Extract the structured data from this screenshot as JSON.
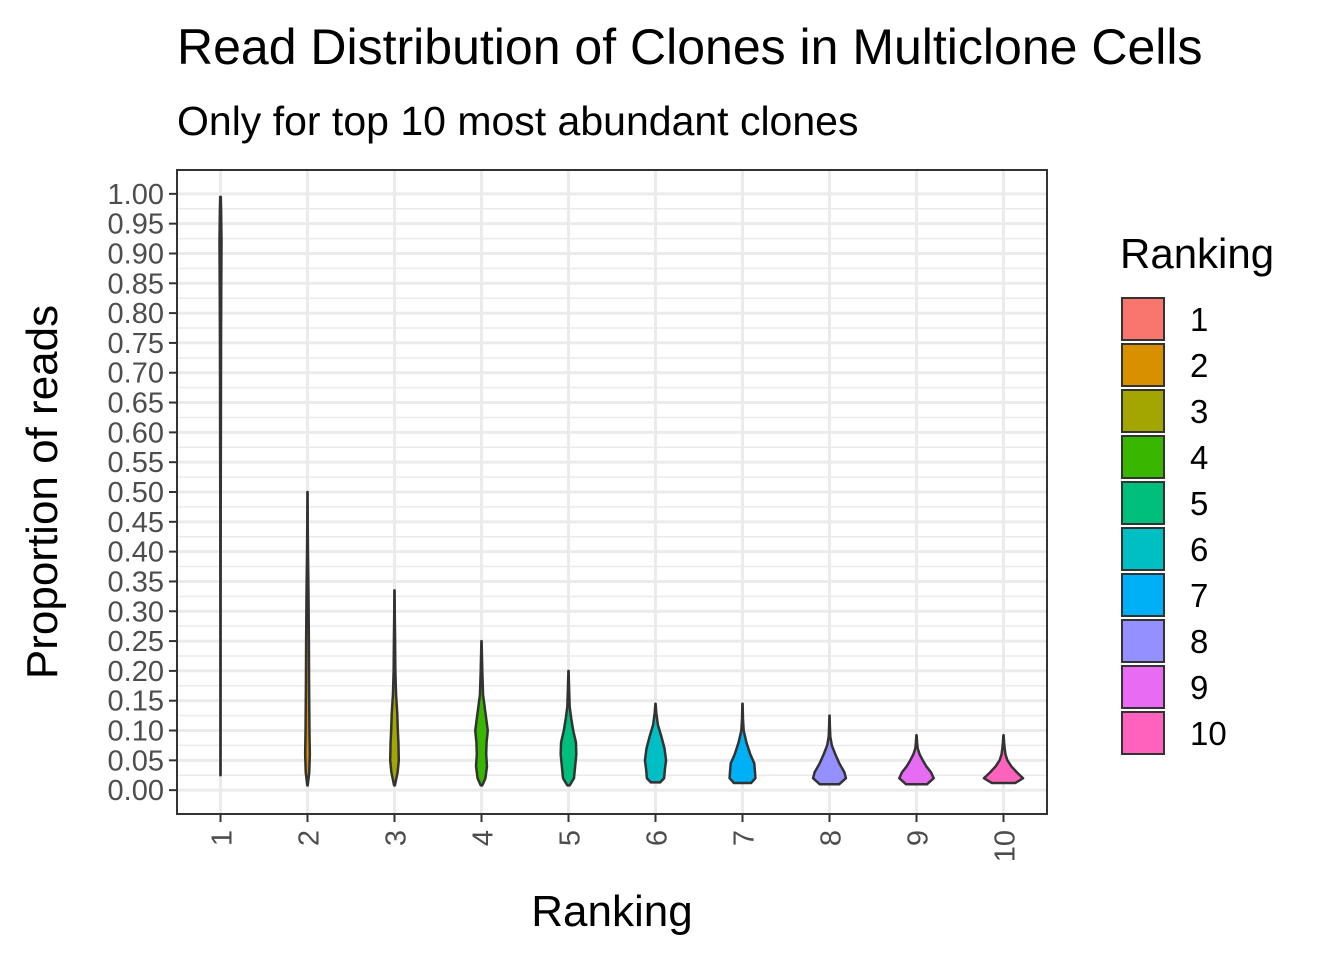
{
  "chart_data": {
    "type": "violin",
    "title": "Read Distribution of Clones in Multiclone Cells",
    "subtitle": "Only for top 10 most abundant clones",
    "xlabel": "Ranking",
    "ylabel": "Proportion of reads",
    "ylim": [
      -0.04,
      1.04
    ],
    "y_ticks": [
      "0.00",
      "0.05",
      "0.10",
      "0.15",
      "0.20",
      "0.25",
      "0.30",
      "0.35",
      "0.40",
      "0.45",
      "0.50",
      "0.55",
      "0.60",
      "0.65",
      "0.70",
      "0.75",
      "0.80",
      "0.85",
      "0.90",
      "0.95",
      "1.00"
    ],
    "categories": [
      "1",
      "2",
      "3",
      "4",
      "5",
      "6",
      "7",
      "8",
      "9",
      "10"
    ],
    "grid": true,
    "legend": {
      "title": "Ranking",
      "position": "right",
      "labels": [
        "1",
        "2",
        "3",
        "4",
        "5",
        "6",
        "7",
        "8",
        "9",
        "10"
      ]
    },
    "colors": [
      "#F8766D",
      "#D89000",
      "#A3A500",
      "#39B600",
      "#00BF7D",
      "#00BFC4",
      "#00B0F6",
      "#9590FF",
      "#E76BF3",
      "#FF62BC"
    ],
    "series": [
      {
        "min": 0.025,
        "max": 0.995,
        "profile": [
          [
            0.025,
            0.002
          ],
          [
            0.3,
            0.004
          ],
          [
            0.48,
            0.006
          ],
          [
            0.6,
            0.01
          ],
          [
            0.75,
            0.014
          ],
          [
            0.85,
            0.02
          ],
          [
            0.92,
            0.026
          ],
          [
            0.97,
            0.016
          ],
          [
            0.995,
            0.008
          ]
        ]
      },
      {
        "min": 0.008,
        "max": 0.5,
        "profile": [
          [
            0.008,
            0.006
          ],
          [
            0.03,
            0.045
          ],
          [
            0.06,
            0.06
          ],
          [
            0.1,
            0.05
          ],
          [
            0.18,
            0.04
          ],
          [
            0.25,
            0.035
          ],
          [
            0.33,
            0.025
          ],
          [
            0.4,
            0.012
          ],
          [
            0.45,
            0.006
          ],
          [
            0.5,
            0.002
          ]
        ]
      },
      {
        "min": 0.008,
        "max": 0.335,
        "profile": [
          [
            0.008,
            0.01
          ],
          [
            0.03,
            0.08
          ],
          [
            0.05,
            0.11
          ],
          [
            0.08,
            0.1
          ],
          [
            0.1,
            0.085
          ],
          [
            0.13,
            0.07
          ],
          [
            0.16,
            0.04
          ],
          [
            0.2,
            0.022
          ],
          [
            0.25,
            0.015
          ],
          [
            0.29,
            0.008
          ],
          [
            0.335,
            0.003
          ]
        ]
      },
      {
        "min": 0.008,
        "max": 0.25,
        "profile": [
          [
            0.008,
            0.02
          ],
          [
            0.02,
            0.1
          ],
          [
            0.04,
            0.14
          ],
          [
            0.06,
            0.12
          ],
          [
            0.08,
            0.13
          ],
          [
            0.1,
            0.16
          ],
          [
            0.13,
            0.1
          ],
          [
            0.16,
            0.04
          ],
          [
            0.2,
            0.02
          ],
          [
            0.25,
            0.003
          ]
        ]
      },
      {
        "min": 0.008,
        "max": 0.2,
        "profile": [
          [
            0.008,
            0.03
          ],
          [
            0.02,
            0.14
          ],
          [
            0.04,
            0.17
          ],
          [
            0.06,
            0.2
          ],
          [
            0.08,
            0.19
          ],
          [
            0.1,
            0.12
          ],
          [
            0.12,
            0.07
          ],
          [
            0.14,
            0.03
          ],
          [
            0.17,
            0.015
          ],
          [
            0.2,
            0.003
          ]
        ]
      },
      {
        "min": 0.013,
        "max": 0.145,
        "profile": [
          [
            0.013,
            0.12
          ],
          [
            0.02,
            0.22
          ],
          [
            0.035,
            0.24
          ],
          [
            0.05,
            0.27
          ],
          [
            0.07,
            0.23
          ],
          [
            0.09,
            0.15
          ],
          [
            0.11,
            0.06
          ],
          [
            0.13,
            0.02
          ],
          [
            0.145,
            0.003
          ]
        ]
      },
      {
        "min": 0.012,
        "max": 0.145,
        "profile": [
          [
            0.012,
            0.22
          ],
          [
            0.02,
            0.33
          ],
          [
            0.03,
            0.32
          ],
          [
            0.045,
            0.3
          ],
          [
            0.06,
            0.2
          ],
          [
            0.08,
            0.1
          ],
          [
            0.1,
            0.03
          ],
          [
            0.12,
            0.012
          ],
          [
            0.145,
            0.003
          ]
        ]
      },
      {
        "min": 0.01,
        "max": 0.125,
        "profile": [
          [
            0.01,
            0.25
          ],
          [
            0.02,
            0.42
          ],
          [
            0.03,
            0.38
          ],
          [
            0.045,
            0.25
          ],
          [
            0.06,
            0.15
          ],
          [
            0.075,
            0.06
          ],
          [
            0.09,
            0.02
          ],
          [
            0.11,
            0.008
          ],
          [
            0.125,
            0.003
          ]
        ]
      },
      {
        "min": 0.01,
        "max": 0.092,
        "profile": [
          [
            0.01,
            0.27
          ],
          [
            0.02,
            0.44
          ],
          [
            0.03,
            0.37
          ],
          [
            0.04,
            0.25
          ],
          [
            0.05,
            0.16
          ],
          [
            0.06,
            0.08
          ],
          [
            0.07,
            0.03
          ],
          [
            0.08,
            0.015
          ],
          [
            0.092,
            0.003
          ]
        ]
      },
      {
        "min": 0.012,
        "max": 0.092,
        "profile": [
          [
            0.012,
            0.3
          ],
          [
            0.02,
            0.5
          ],
          [
            0.03,
            0.34
          ],
          [
            0.04,
            0.2
          ],
          [
            0.05,
            0.1
          ],
          [
            0.06,
            0.05
          ],
          [
            0.07,
            0.03
          ],
          [
            0.08,
            0.015
          ],
          [
            0.092,
            0.003
          ]
        ]
      }
    ]
  }
}
